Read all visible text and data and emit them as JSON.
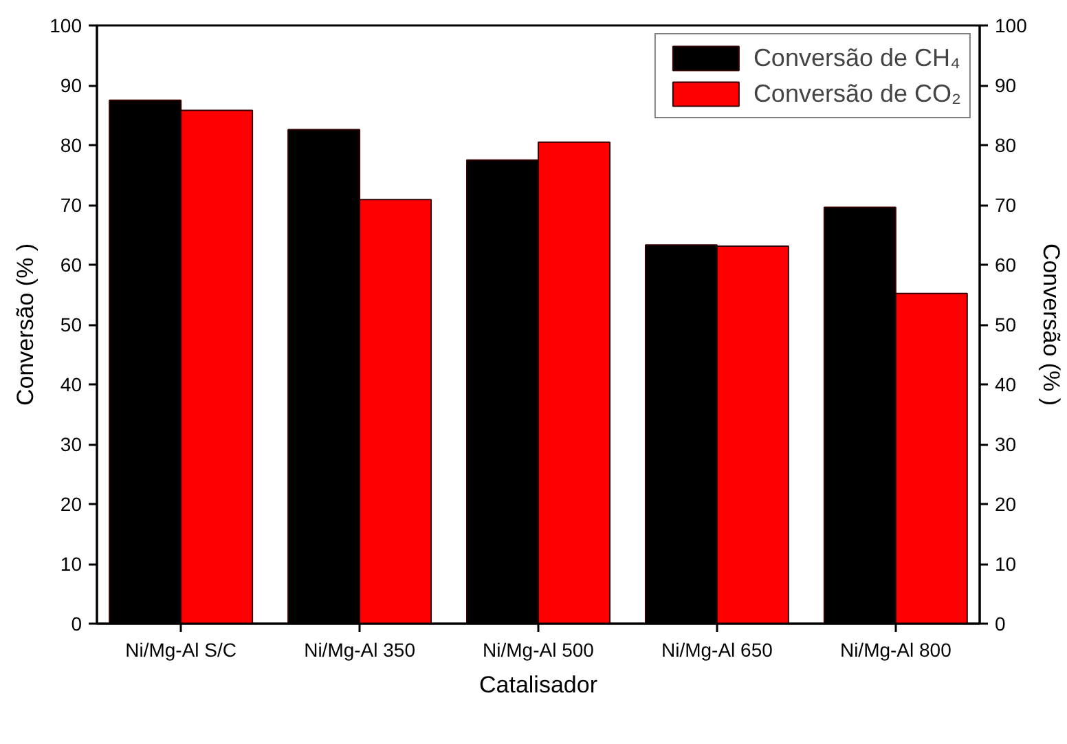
{
  "chart_data": {
    "type": "bar",
    "xlabel": "Catalisador",
    "ylabel": "Conversão (% )",
    "y2label": "Conversão (% )",
    "categories": [
      "Ni/Mg-Al S/C",
      "Ni/Mg-Al 350",
      "Ni/Mg-Al 500",
      "Ni/Mg-Al 650",
      "Ni/Mg-Al 800"
    ],
    "series": [
      {
        "name": "Conversão de CH₄",
        "color": "#000000",
        "values": [
          87.5,
          82.6,
          77.5,
          63.3,
          69.6
        ]
      },
      {
        "name": "Conversão de CO₂",
        "color": "#ff0000",
        "values": [
          85.8,
          70.9,
          80.5,
          63.1,
          55.2
        ]
      }
    ],
    "ylim": [
      0,
      100
    ],
    "yticks": [
      0,
      10,
      20,
      30,
      40,
      50,
      60,
      70,
      80,
      90,
      100
    ],
    "y2lim": [
      0,
      100
    ],
    "y2ticks": [
      0,
      10,
      20,
      30,
      40,
      50,
      60,
      70,
      80,
      90,
      100
    ],
    "grid": false,
    "legend": "top right"
  }
}
